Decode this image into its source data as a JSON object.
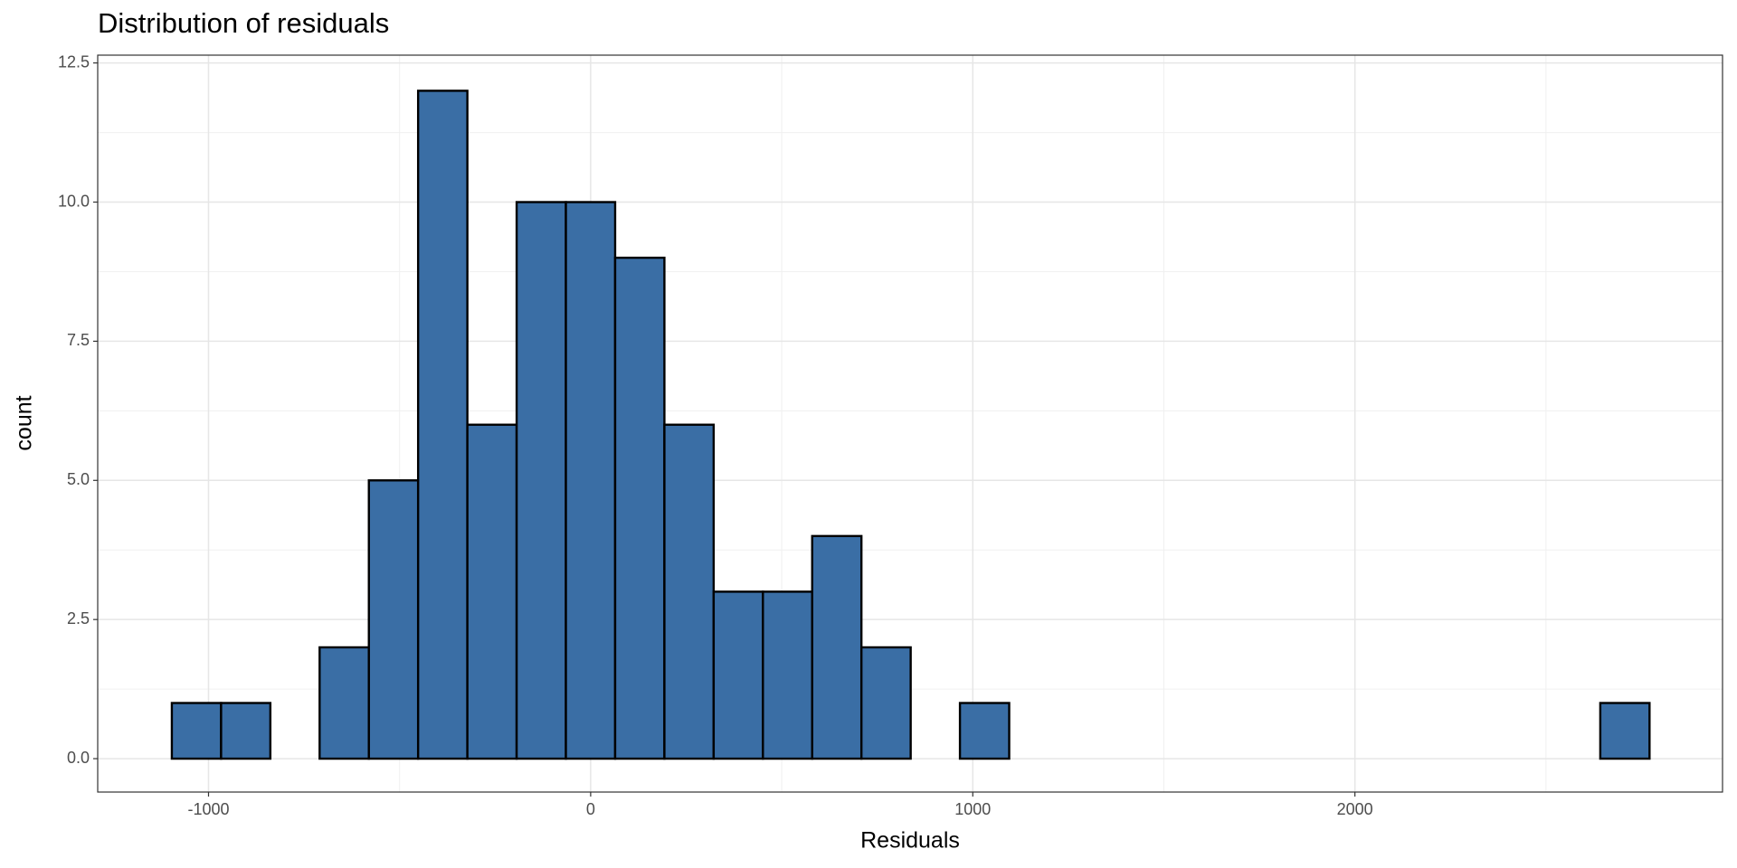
{
  "chart_data": {
    "type": "histogram",
    "title": "Distribution of residuals",
    "x_label": "Residuals",
    "y_label": "count",
    "bins": [
      -1096,
      -967.1,
      -838.2,
      -709.3,
      -580.4,
      -451.5,
      -322.6,
      -193.7,
      -64.8,
      64.1,
      193,
      321.9,
      450.8,
      579.7,
      708.6,
      837.5,
      966.4,
      1095.3,
      1224.2,
      1353.1,
      1482,
      1610.9,
      1739.8,
      1868.7,
      1997.6,
      2126.5,
      2255.4,
      2384.3,
      2513.2,
      2642.1,
      2771
    ],
    "values": [
      1,
      1,
      0,
      2,
      5,
      12,
      6,
      10,
      10,
      9,
      6,
      3,
      3,
      4,
      2,
      0,
      1,
      0,
      0,
      0,
      0,
      0,
      0,
      0,
      0,
      0,
      0,
      0,
      0,
      1
    ],
    "color": "#3a6ea5",
    "edge_color": "#000000",
    "xlim": [
      -1290,
      2962
    ],
    "ylim": [
      -0.6,
      12.64
    ],
    "xticks": [
      -1000,
      0,
      1000,
      2000
    ],
    "yticks": [
      {
        "value": 0,
        "label": "0.0"
      },
      2.5,
      {
        "value": 5,
        "label": "5.0"
      },
      7.5,
      {
        "value": 10,
        "label": "10.0"
      },
      12.5
    ],
    "grid": true
  }
}
